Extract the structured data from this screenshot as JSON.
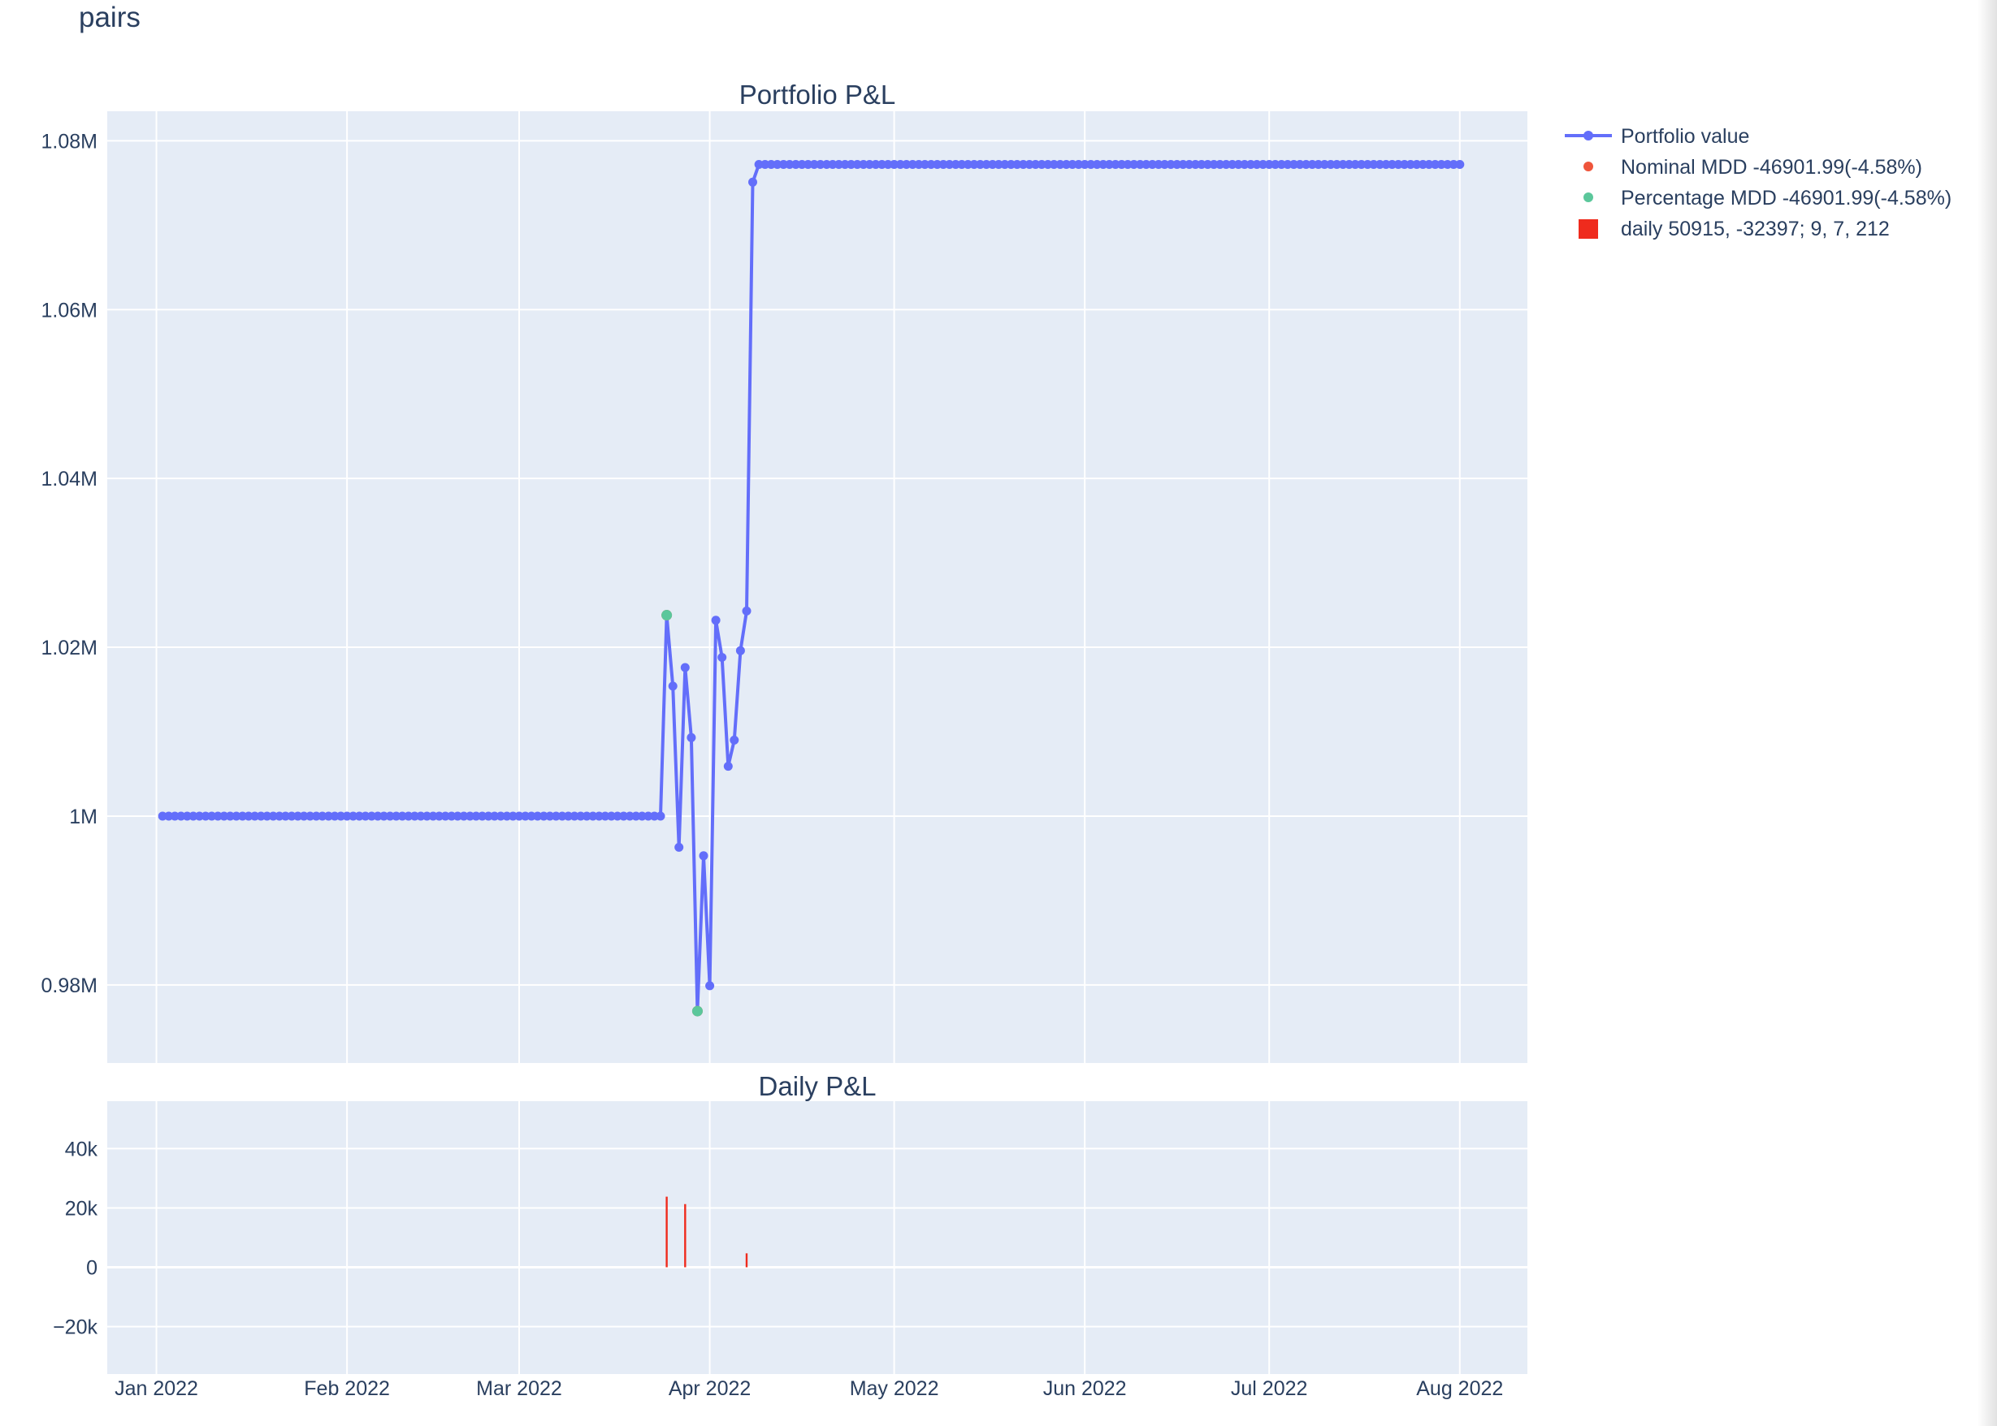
{
  "figure_title": "pairs",
  "colors": {
    "plot_bg": "#e5ecf6",
    "grid": "#ffffff",
    "portfolio_line": "#636efa",
    "nominal_mdd": "#ef553b",
    "percentage_mdd": "#5bc79b",
    "daily_bar": "#ef2b1d"
  },
  "chart_data": [
    {
      "type": "line",
      "title": "Portfolio P&L",
      "xlabel": "",
      "ylabel": "",
      "x_range": [
        "2021-12-24",
        "2022-08-12"
      ],
      "ylim": [
        970750,
        1083500
      ],
      "x_ticks": [
        {
          "date": "2022-01-01",
          "label": "Jan 2022"
        },
        {
          "date": "2022-02-01",
          "label": "Feb 2022"
        },
        {
          "date": "2022-03-01",
          "label": "Mar 2022"
        },
        {
          "date": "2022-04-01",
          "label": "Apr 2022"
        },
        {
          "date": "2022-05-01",
          "label": "May 2022"
        },
        {
          "date": "2022-06-01",
          "label": "Jun 2022"
        },
        {
          "date": "2022-07-01",
          "label": "Jul 2022"
        },
        {
          "date": "2022-08-01",
          "label": "Aug 2022"
        }
      ],
      "y_ticks": [
        {
          "value": 980000,
          "label": "0.98M"
        },
        {
          "value": 1000000,
          "label": "1M"
        },
        {
          "value": 1020000,
          "label": "1.02M"
        },
        {
          "value": 1040000,
          "label": "1.04M"
        },
        {
          "value": 1060000,
          "label": "1.06M"
        },
        {
          "value": 1080000,
          "label": "1.08M"
        }
      ],
      "grid": true,
      "series": [
        {
          "name": "Portfolio value",
          "mode": "lines+markers",
          "flat_segments": [
            {
              "from": "2022-01-02",
              "to": "2022-03-24",
              "value": 1000000
            },
            {
              "from": "2022-04-09",
              "to": "2022-08-01",
              "value": 1077200
            }
          ],
          "points": [
            {
              "x": "2022-03-25",
              "y": 1023800
            },
            {
              "x": "2022-03-26",
              "y": 1015400
            },
            {
              "x": "2022-03-27",
              "y": 996300
            },
            {
              "x": "2022-03-28",
              "y": 1017600
            },
            {
              "x": "2022-03-29",
              "y": 1009300
            },
            {
              "x": "2022-03-30",
              "y": 976900
            },
            {
              "x": "2022-03-31",
              "y": 995300
            },
            {
              "x": "2022-04-01",
              "y": 979900
            },
            {
              "x": "2022-04-02",
              "y": 1023200
            },
            {
              "x": "2022-04-03",
              "y": 1018800
            },
            {
              "x": "2022-04-04",
              "y": 1005900
            },
            {
              "x": "2022-04-05",
              "y": 1009000
            },
            {
              "x": "2022-04-06",
              "y": 1019600
            },
            {
              "x": "2022-04-07",
              "y": 1024300
            },
            {
              "x": "2022-04-08",
              "y": 1075100
            }
          ]
        },
        {
          "name": "Nominal MDD -46901.99(-4.58%)",
          "mode": "markers",
          "points": [
            {
              "x": "2022-03-25",
              "y": 1023800
            },
            {
              "x": "2022-03-30",
              "y": 976900
            }
          ]
        },
        {
          "name": "Percentage MDD -46901.99(-4.58%)",
          "mode": "markers",
          "points": [
            {
              "x": "2022-03-25",
              "y": 1023800
            },
            {
              "x": "2022-03-30",
              "y": 976900
            }
          ]
        }
      ]
    },
    {
      "type": "bar",
      "title": "Daily P&L",
      "xlabel": "",
      "ylabel": "",
      "ylim": [
        -36000,
        56000
      ],
      "y_ticks": [
        {
          "value": -20000,
          "label": "−20k"
        },
        {
          "value": 0,
          "label": "0"
        },
        {
          "value": 20000,
          "label": "20k"
        },
        {
          "value": 40000,
          "label": "40k"
        }
      ],
      "grid": true,
      "series": [
        {
          "name": "daily 50915, -32397; 9, 7, 212",
          "bars": [
            {
              "x": "2022-03-25",
              "y": 23800
            },
            {
              "x": "2022-03-28",
              "y": 21300
            },
            {
              "x": "2022-04-07",
              "y": 4700
            }
          ]
        }
      ]
    }
  ],
  "legend": {
    "placement": "top-right, outside plot",
    "items": [
      {
        "label": "Portfolio value",
        "symbol": "line-marker"
      },
      {
        "label": "Nominal MDD -46901.99(-4.58%)",
        "symbol": "dot"
      },
      {
        "label": "Percentage MDD -46901.99(-4.58%)",
        "symbol": "dot"
      },
      {
        "label": "daily 50915, -32397; 9, 7, 212",
        "symbol": "square"
      }
    ]
  }
}
